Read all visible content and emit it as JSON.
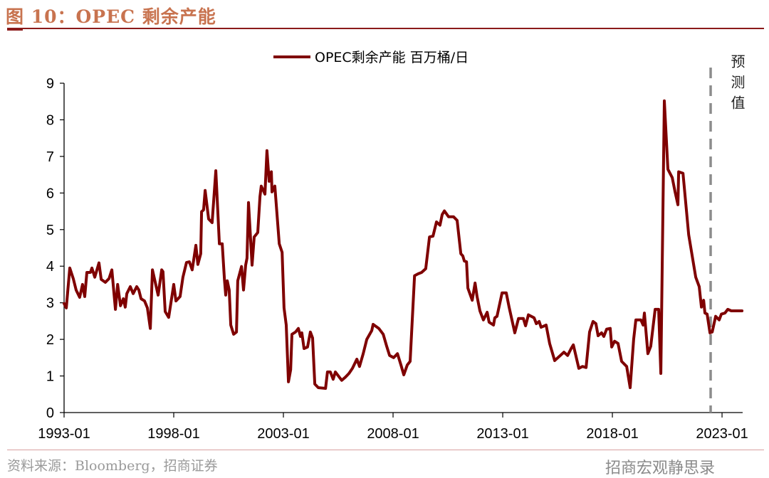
{
  "header": {
    "title": "图 10：OPEC 剩余产能"
  },
  "footer": {
    "source": "资料来源：Bloomberg，招商证券",
    "watermark": "招商宏观静思录"
  },
  "colors": {
    "line": "#7f0000",
    "title": "#c8734f",
    "forecast_line": "#8c8c8c"
  },
  "chart_data": {
    "type": "line",
    "title": "",
    "xlabel": "",
    "ylabel": "",
    "legend": {
      "label": "OPEC剩余产能 百万桶/日",
      "placement": "top-center"
    },
    "xlim": [
      1993.0,
      2023.94
    ],
    "ylim": [
      0,
      9
    ],
    "yticks": [
      0,
      1,
      2,
      3,
      4,
      5,
      6,
      7,
      8,
      9
    ],
    "xticks": [
      {
        "value": 1993.0,
        "label": "1993-01"
      },
      {
        "value": 1998.0,
        "label": "1998-01"
      },
      {
        "value": 2003.0,
        "label": "2003-01"
      },
      {
        "value": 2008.0,
        "label": "2008-01"
      },
      {
        "value": 2013.0,
        "label": "2013-01"
      },
      {
        "value": 2018.0,
        "label": "2018-01"
      },
      {
        "value": 2023.0,
        "label": "2023-01"
      }
    ],
    "forecast": {
      "x": 2022.48,
      "label": "预测值"
    },
    "series": [
      {
        "name": "OPEC剩余产能 百万桶/日",
        "points": [
          [
            1993.0,
            2.98
          ],
          [
            1993.1,
            2.86
          ],
          [
            1993.26,
            3.95
          ],
          [
            1993.42,
            3.66
          ],
          [
            1993.55,
            3.35
          ],
          [
            1993.71,
            3.15
          ],
          [
            1993.84,
            3.5
          ],
          [
            1993.94,
            3.17
          ],
          [
            1994.04,
            3.83
          ],
          [
            1994.2,
            3.83
          ],
          [
            1994.27,
            3.95
          ],
          [
            1994.4,
            3.7
          ],
          [
            1994.59,
            4.09
          ],
          [
            1994.69,
            3.64
          ],
          [
            1994.88,
            3.56
          ],
          [
            1995.05,
            3.66
          ],
          [
            1995.18,
            3.9
          ],
          [
            1995.34,
            2.82
          ],
          [
            1995.44,
            3.5
          ],
          [
            1995.57,
            2.92
          ],
          [
            1995.7,
            3.11
          ],
          [
            1995.79,
            2.88
          ],
          [
            1995.86,
            3.25
          ],
          [
            1996.02,
            3.44
          ],
          [
            1996.15,
            3.25
          ],
          [
            1996.31,
            3.44
          ],
          [
            1996.41,
            3.35
          ],
          [
            1996.51,
            3.11
          ],
          [
            1996.67,
            3.05
          ],
          [
            1996.8,
            2.86
          ],
          [
            1996.93,
            2.3
          ],
          [
            1997.03,
            3.9
          ],
          [
            1997.29,
            3.21
          ],
          [
            1997.45,
            3.9
          ],
          [
            1997.51,
            3.85
          ],
          [
            1997.61,
            2.76
          ],
          [
            1997.77,
            2.6
          ],
          [
            1998.0,
            3.5
          ],
          [
            1998.1,
            3.05
          ],
          [
            1998.29,
            3.17
          ],
          [
            1998.42,
            3.7
          ],
          [
            1998.58,
            4.1
          ],
          [
            1998.71,
            4.12
          ],
          [
            1998.84,
            3.9
          ],
          [
            1999.01,
            4.57
          ],
          [
            1999.1,
            4.05
          ],
          [
            1999.23,
            4.34
          ],
          [
            1999.27,
            5.49
          ],
          [
            1999.36,
            5.54
          ],
          [
            1999.43,
            6.07
          ],
          [
            1999.59,
            5.29
          ],
          [
            1999.75,
            5.19
          ],
          [
            1999.92,
            6.61
          ],
          [
            2000.08,
            4.61
          ],
          [
            2000.21,
            4.61
          ],
          [
            2000.31,
            3.64
          ],
          [
            2000.37,
            3.21
          ],
          [
            2000.44,
            3.6
          ],
          [
            2000.53,
            3.35
          ],
          [
            2000.6,
            2.39
          ],
          [
            2000.73,
            2.14
          ],
          [
            2000.86,
            2.2
          ],
          [
            2000.92,
            3.6
          ],
          [
            2001.09,
            3.99
          ],
          [
            2001.18,
            3.35
          ],
          [
            2001.28,
            4.03
          ],
          [
            2001.34,
            4.22
          ],
          [
            2001.41,
            5.74
          ],
          [
            2001.57,
            4.03
          ],
          [
            2001.67,
            4.8
          ],
          [
            2001.83,
            4.92
          ],
          [
            2001.93,
            5.9
          ],
          [
            2001.99,
            6.19
          ],
          [
            2002.16,
            5.97
          ],
          [
            2002.25,
            7.16
          ],
          [
            2002.35,
            6.32
          ],
          [
            2002.45,
            6.58
          ],
          [
            2002.48,
            6.03
          ],
          [
            2002.61,
            6.19
          ],
          [
            2002.81,
            4.61
          ],
          [
            2002.94,
            4.38
          ],
          [
            2003.03,
            2.86
          ],
          [
            2003.13,
            2.39
          ],
          [
            2003.23,
            0.84
          ],
          [
            2003.33,
            1.17
          ],
          [
            2003.39,
            2.14
          ],
          [
            2003.55,
            2.2
          ],
          [
            2003.68,
            2.3
          ],
          [
            2003.78,
            2.08
          ],
          [
            2003.84,
            2.18
          ],
          [
            2003.94,
            1.75
          ],
          [
            2004.1,
            1.79
          ],
          [
            2004.23,
            2.2
          ],
          [
            2004.33,
            2.04
          ],
          [
            2004.43,
            0.78
          ],
          [
            2004.59,
            0.68
          ],
          [
            2004.92,
            0.66
          ],
          [
            2005.01,
            1.11
          ],
          [
            2005.14,
            1.11
          ],
          [
            2005.27,
            0.91
          ],
          [
            2005.37,
            1.11
          ],
          [
            2005.66,
            0.88
          ],
          [
            2005.83,
            0.97
          ],
          [
            2005.99,
            1.07
          ],
          [
            2006.15,
            1.21
          ],
          [
            2006.35,
            1.46
          ],
          [
            2006.47,
            1.26
          ],
          [
            2006.64,
            1.61
          ],
          [
            2006.8,
            2.0
          ],
          [
            2007.03,
            2.24
          ],
          [
            2007.09,
            2.41
          ],
          [
            2007.35,
            2.3
          ],
          [
            2007.55,
            2.14
          ],
          [
            2007.71,
            1.81
          ],
          [
            2007.84,
            1.56
          ],
          [
            2008.03,
            1.5
          ],
          [
            2008.2,
            1.61
          ],
          [
            2008.36,
            1.3
          ],
          [
            2008.49,
            1.03
          ],
          [
            2008.65,
            1.3
          ],
          [
            2008.78,
            1.4
          ],
          [
            2008.98,
            3.74
          ],
          [
            2009.14,
            3.79
          ],
          [
            2009.3,
            3.83
          ],
          [
            2009.49,
            3.93
          ],
          [
            2009.66,
            4.8
          ],
          [
            2009.82,
            4.82
          ],
          [
            2009.98,
            5.21
          ],
          [
            2010.14,
            5.12
          ],
          [
            2010.24,
            5.41
          ],
          [
            2010.34,
            5.51
          ],
          [
            2010.53,
            5.35
          ],
          [
            2010.76,
            5.35
          ],
          [
            2010.92,
            5.25
          ],
          [
            2011.09,
            4.34
          ],
          [
            2011.18,
            4.28
          ],
          [
            2011.25,
            4.14
          ],
          [
            2011.35,
            4.12
          ],
          [
            2011.41,
            3.4
          ],
          [
            2011.61,
            3.07
          ],
          [
            2011.74,
            3.54
          ],
          [
            2011.83,
            3.17
          ],
          [
            2011.96,
            2.78
          ],
          [
            2012.12,
            2.53
          ],
          [
            2012.29,
            2.74
          ],
          [
            2012.38,
            2.47
          ],
          [
            2012.58,
            2.39
          ],
          [
            2012.64,
            2.59
          ],
          [
            2012.74,
            2.63
          ],
          [
            2012.97,
            3.27
          ],
          [
            2013.16,
            3.27
          ],
          [
            2013.29,
            2.88
          ],
          [
            2013.55,
            2.18
          ],
          [
            2013.72,
            2.57
          ],
          [
            2013.94,
            2.57
          ],
          [
            2014.04,
            2.37
          ],
          [
            2014.17,
            2.67
          ],
          [
            2014.43,
            2.59
          ],
          [
            2014.53,
            2.43
          ],
          [
            2014.66,
            2.49
          ],
          [
            2014.75,
            2.33
          ],
          [
            2014.98,
            2.39
          ],
          [
            2015.14,
            1.89
          ],
          [
            2015.37,
            1.42
          ],
          [
            2015.63,
            1.56
          ],
          [
            2015.79,
            1.65
          ],
          [
            2015.96,
            1.56
          ],
          [
            2016.12,
            1.75
          ],
          [
            2016.22,
            1.85
          ],
          [
            2016.47,
            1.21
          ],
          [
            2016.64,
            1.26
          ],
          [
            2016.8,
            1.23
          ],
          [
            2016.96,
            2.2
          ],
          [
            2017.12,
            2.49
          ],
          [
            2017.25,
            2.43
          ],
          [
            2017.35,
            2.1
          ],
          [
            2017.51,
            2.18
          ],
          [
            2017.61,
            2.08
          ],
          [
            2017.74,
            2.28
          ],
          [
            2017.9,
            2.3
          ],
          [
            2017.97,
            1.79
          ],
          [
            2018.1,
            1.95
          ],
          [
            2018.26,
            1.89
          ],
          [
            2018.42,
            1.4
          ],
          [
            2018.65,
            1.26
          ],
          [
            2018.81,
            0.68
          ],
          [
            2018.97,
            2.0
          ],
          [
            2019.07,
            2.53
          ],
          [
            2019.3,
            2.53
          ],
          [
            2019.4,
            2.39
          ],
          [
            2019.46,
            2.72
          ],
          [
            2019.62,
            1.61
          ],
          [
            2019.75,
            1.81
          ],
          [
            2019.95,
            2.82
          ],
          [
            2020.11,
            2.82
          ],
          [
            2020.21,
            1.07
          ],
          [
            2020.37,
            8.52
          ],
          [
            2020.53,
            6.65
          ],
          [
            2020.73,
            6.42
          ],
          [
            2020.86,
            6.03
          ],
          [
            2020.99,
            5.68
          ],
          [
            2021.02,
            6.58
          ],
          [
            2021.22,
            6.54
          ],
          [
            2021.48,
            4.86
          ],
          [
            2021.8,
            3.7
          ],
          [
            2021.96,
            3.44
          ],
          [
            2022.06,
            2.88
          ],
          [
            2022.16,
            3.07
          ],
          [
            2022.22,
            2.72
          ],
          [
            2022.32,
            2.69
          ],
          [
            2022.45,
            2.18
          ],
          [
            2022.55,
            2.2
          ],
          [
            2022.71,
            2.63
          ],
          [
            2022.87,
            2.53
          ],
          [
            2022.97,
            2.69
          ],
          [
            2023.13,
            2.72
          ],
          [
            2023.26,
            2.82
          ],
          [
            2023.42,
            2.78
          ],
          [
            2023.91,
            2.78
          ]
        ]
      }
    ]
  }
}
